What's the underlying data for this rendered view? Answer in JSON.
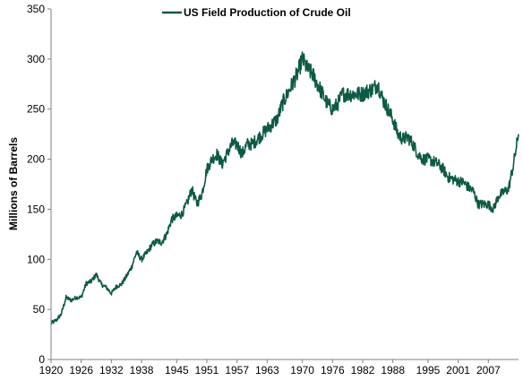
{
  "chart_data": {
    "type": "line",
    "title": "",
    "ylabel": "Millions of Barrels",
    "xlabel": "",
    "ylim": [
      0,
      350
    ],
    "xlim": [
      1920,
      2013
    ],
    "grid": false,
    "legend": "top-center",
    "color": "#0d5a44",
    "y_ticks": [
      "0",
      "50",
      "100",
      "150",
      "200",
      "250",
      "300",
      "350"
    ],
    "x_ticks": [
      "1920",
      "1926",
      "1932",
      "1938",
      "1945",
      "1951",
      "1957",
      "1963",
      "1970",
      "1976",
      "1982",
      "1988",
      "1995",
      "2001",
      "2007"
    ],
    "series": [
      {
        "name": "US Field Production of Crude Oil",
        "x": [
          1920,
          1921,
          1922,
          1923,
          1924,
          1925,
          1926,
          1927,
          1928,
          1929,
          1930,
          1931,
          1932,
          1933,
          1934,
          1935,
          1936,
          1937,
          1938,
          1939,
          1940,
          1941,
          1942,
          1943,
          1944,
          1945,
          1946,
          1947,
          1948,
          1949,
          1950,
          1951,
          1952,
          1953,
          1954,
          1955,
          1956,
          1957,
          1958,
          1959,
          1960,
          1961,
          1962,
          1963,
          1964,
          1965,
          1966,
          1967,
          1968,
          1969,
          1970,
          1971,
          1972,
          1973,
          1974,
          1975,
          1976,
          1977,
          1978,
          1979,
          1980,
          1981,
          1982,
          1983,
          1984,
          1985,
          1986,
          1987,
          1988,
          1989,
          1990,
          1991,
          1992,
          1993,
          1994,
          1995,
          1996,
          1997,
          1998,
          1999,
          2000,
          2001,
          2002,
          2003,
          2004,
          2005,
          2006,
          2007,
          2008,
          2009,
          2010,
          2011,
          2012,
          2013
        ],
        "values": [
          36,
          39,
          45,
          62,
          59,
          62,
          62,
          76,
          78,
          85,
          75,
          72,
          66,
          73,
          75,
          83,
          92,
          107,
          100,
          106,
          114,
          118,
          117,
          125,
          140,
          143,
          145,
          155,
          170,
          155,
          165,
          190,
          200,
          205,
          195,
          205,
          215,
          215,
          205,
          215,
          215,
          220,
          225,
          230,
          235,
          240,
          255,
          265,
          275,
          285,
          300,
          290,
          285,
          275,
          265,
          255,
          250,
          255,
          265,
          265,
          265,
          265,
          265,
          268,
          270,
          275,
          260,
          250,
          240,
          225,
          220,
          222,
          215,
          205,
          200,
          200,
          198,
          195,
          190,
          182,
          180,
          178,
          177,
          172,
          168,
          155,
          155,
          155,
          150,
          163,
          167,
          170,
          195,
          225
        ]
      }
    ]
  }
}
